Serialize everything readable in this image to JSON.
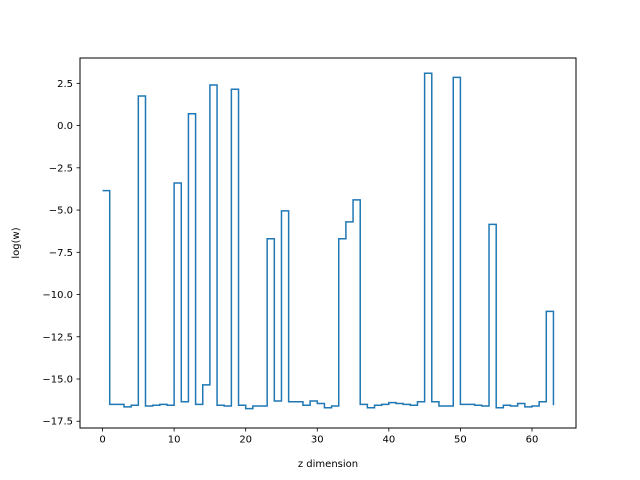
{
  "chart_data": {
    "type": "line",
    "drawstyle": "steps-post",
    "title": "",
    "xlabel": "z dimension",
    "ylabel": "log(w)",
    "xlim": [
      -3.15,
      66.15
    ],
    "ylim": [
      -17.9,
      4.0
    ],
    "xticks": [
      0,
      10,
      20,
      30,
      40,
      50,
      60
    ],
    "xtick_labels": [
      "0",
      "10",
      "20",
      "30",
      "40",
      "50",
      "60"
    ],
    "yticks": [
      2.5,
      0.0,
      -2.5,
      -5.0,
      -7.5,
      -10.0,
      -12.5,
      -15.0,
      -17.5
    ],
    "ytick_labels": [
      "2.5",
      "0.0",
      "−2.5",
      "−5.0",
      "−7.5",
      "−10.0",
      "−12.5",
      "−15.0",
      "−17.5"
    ],
    "grid": false,
    "line_color": "#1f77b4",
    "series": [
      {
        "x": [
          0,
          1,
          2,
          3,
          4,
          5,
          6,
          7,
          8,
          9,
          10,
          11,
          12,
          13,
          14,
          15,
          16,
          17,
          18,
          19,
          20,
          21,
          22,
          23,
          24,
          25,
          26,
          27,
          28,
          29,
          30,
          31,
          32,
          33,
          34,
          35,
          36,
          37,
          38,
          39,
          40,
          41,
          42,
          43,
          44,
          45,
          46,
          47,
          48,
          49,
          50,
          51,
          52,
          53,
          54,
          55,
          56,
          57,
          58,
          59,
          60,
          61,
          62,
          63
        ],
        "values": [
          -3.85,
          -16.5,
          -16.5,
          -16.65,
          -16.55,
          1.75,
          -16.6,
          -16.55,
          -16.5,
          -16.55,
          -3.4,
          -16.35,
          0.7,
          -16.5,
          -15.35,
          2.4,
          -16.55,
          -16.6,
          2.15,
          -16.55,
          -16.75,
          -16.6,
          -16.6,
          -6.7,
          -16.3,
          -5.05,
          -16.35,
          -16.35,
          -16.55,
          -16.3,
          -16.45,
          -16.7,
          -16.6,
          -6.7,
          -5.7,
          -4.4,
          -16.5,
          -16.7,
          -16.55,
          -16.5,
          -16.4,
          -16.45,
          -16.5,
          -16.55,
          -16.35,
          3.1,
          -16.35,
          -16.6,
          -16.6,
          2.85,
          -16.5,
          -16.5,
          -16.55,
          -16.6,
          -5.85,
          -16.7,
          -16.55,
          -16.6,
          -16.45,
          -16.65,
          -16.6,
          -16.35,
          -11.0,
          -16.55
        ]
      }
    ]
  }
}
